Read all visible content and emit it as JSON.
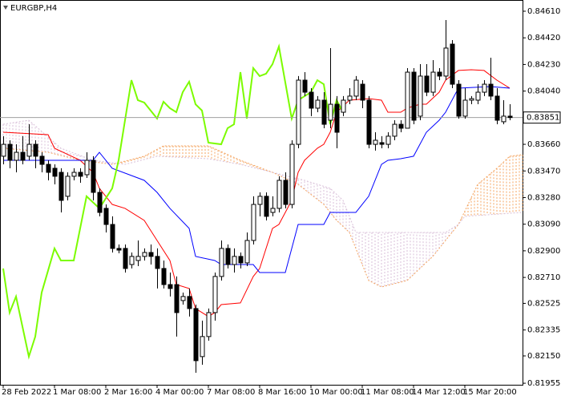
{
  "chart_data": {
    "type": "candlestick",
    "title": "EURGBP,H4",
    "ylim": [
      0.81944,
      0.8469
    ],
    "xlim": [
      -0.5,
      81
    ],
    "yticks": [
      {
        "value": 0.8461,
        "label": "0.84610"
      },
      {
        "value": 0.8442,
        "label": "0.84420"
      },
      {
        "value": 0.8423,
        "label": "0.84230"
      },
      {
        "value": 0.8404,
        "label": "0.84040"
      },
      {
        "value": 0.8366,
        "label": "0.83660"
      },
      {
        "value": 0.8347,
        "label": "0.83470"
      },
      {
        "value": 0.8328,
        "label": "0.83280"
      },
      {
        "value": 0.8309,
        "label": "0.83090"
      },
      {
        "value": 0.829,
        "label": "0.82900"
      },
      {
        "value": 0.8271,
        "label": "0.82710"
      },
      {
        "value": 0.82525,
        "label": "0.82525"
      },
      {
        "value": 0.82335,
        "label": "0.82335"
      },
      {
        "value": 0.8215,
        "label": "0.82150"
      },
      {
        "value": 0.81955,
        "label": "0.81955"
      }
    ],
    "xticks": [
      {
        "value": 0,
        "label": "28 Feb 2022"
      },
      {
        "value": 8,
        "label": "1 Mar 08:00"
      },
      {
        "value": 16,
        "label": "2 Mar 16:00"
      },
      {
        "value": 24,
        "label": "4 Mar 00:00"
      },
      {
        "value": 32,
        "label": "7 Mar 08:00"
      },
      {
        "value": 40,
        "label": "8 Mar 16:00"
      },
      {
        "value": 48,
        "label": "10 Mar 00:00"
      },
      {
        "value": 56,
        "label": "11 Mar 08:00"
      },
      {
        "value": 64,
        "label": "14 Mar 12:00"
      },
      {
        "value": 72,
        "label": "15 Mar 20:00"
      }
    ],
    "current_price": 0.83851,
    "current_price_color": "#a0a0a0",
    "candles": {
      "up_color": "#ffffff",
      "down_color": "#000000",
      "outline_color": "#000000",
      "open": [
        0.83575,
        0.8366,
        0.83546,
        0.83603,
        0.83575,
        0.8366,
        0.83575,
        0.83517,
        0.83489,
        0.8346,
        0.83289,
        0.83432,
        0.8346,
        0.83443,
        0.83546,
        0.83317,
        0.83203,
        0.83088,
        0.82917,
        0.82917,
        0.82802,
        0.82831,
        0.8286,
        0.82888,
        0.8286,
        0.82774,
        0.82659,
        0.82659,
        0.82545,
        0.82574,
        0.82488,
        0.82145,
        0.82288,
        0.82459,
        0.82717,
        0.82917,
        0.82802,
        0.8286,
        0.82814,
        0.82974,
        0.83231,
        0.83289,
        0.83174,
        0.83203,
        0.83403,
        0.83231,
        0.8366,
        0.84118,
        0.84032,
        0.83918,
        0.83975,
        0.83832,
        0.83946,
        0.83889,
        0.83975,
        0.84004,
        0.84089,
        0.83975,
        0.8366,
        0.83672,
        0.8366,
        0.83718,
        0.83803,
        0.83775,
        0.84175,
        0.83861,
        0.84147,
        0.84032,
        0.84175,
        0.84147,
        0.84375,
        0.84089,
        0.83861,
        0.83975,
        0.83975,
        0.84032,
        0.84089,
        0.84004,
        0.83821,
        0.83861
      ],
      "high": [
        0.83718,
        0.83689,
        0.8366,
        0.83718,
        0.83803,
        0.83689,
        0.83603,
        0.83546,
        0.83517,
        0.83489,
        0.8346,
        0.83489,
        0.83489,
        0.83603,
        0.83575,
        0.83346,
        0.83231,
        0.83146,
        0.82945,
        0.82945,
        0.82888,
        0.82974,
        0.82917,
        0.82945,
        0.82917,
        0.82831,
        0.82745,
        0.82717,
        0.82602,
        0.82631,
        0.82516,
        0.82402,
        0.82488,
        0.82745,
        0.82974,
        0.82945,
        0.82917,
        0.82888,
        0.83031,
        0.83289,
        0.83317,
        0.83317,
        0.83289,
        0.83432,
        0.8346,
        0.83689,
        0.84147,
        0.84175,
        0.84061,
        0.84004,
        0.84032,
        0.84347,
        0.84004,
        0.84004,
        0.84061,
        0.84147,
        0.84118,
        0.84004,
        0.83746,
        0.83718,
        0.83746,
        0.83832,
        0.83832,
        0.84204,
        0.84204,
        0.84232,
        0.84232,
        0.84261,
        0.84204,
        0.84547,
        0.84404,
        0.84118,
        0.84061,
        0.84004,
        0.84089,
        0.84118,
        0.84278,
        0.84061,
        0.83975,
        0.83946
      ],
      "low": [
        0.83517,
        0.83489,
        0.8346,
        0.83517,
        0.83546,
        0.83489,
        0.8346,
        0.83403,
        0.83374,
        0.83174,
        0.8326,
        0.83403,
        0.83386,
        0.8342,
        0.8326,
        0.83146,
        0.83031,
        0.82888,
        0.82882,
        0.82745,
        0.82774,
        0.82791,
        0.82831,
        0.82802,
        0.82631,
        0.82631,
        0.82574,
        0.82288,
        0.82516,
        0.82431,
        0.8203,
        0.82087,
        0.82259,
        0.82402,
        0.82688,
        0.82774,
        0.82745,
        0.82774,
        0.82791,
        0.82945,
        0.83146,
        0.83117,
        0.83146,
        0.83174,
        0.83203,
        0.83203,
        0.83632,
        0.84004,
        0.83861,
        0.83889,
        0.83775,
        0.83775,
        0.83632,
        0.83861,
        0.83946,
        0.83975,
        0.83918,
        0.83632,
        0.83615,
        0.83632,
        0.83632,
        0.83689,
        0.83746,
        0.83775,
        0.83803,
        0.83832,
        0.84004,
        0.84004,
        0.84118,
        0.84118,
        0.84061,
        0.83843,
        0.83843,
        0.83946,
        0.83946,
        0.84004,
        0.83975,
        0.83803,
        0.83803,
        0.83832
      ],
      "close": [
        0.8366,
        0.83546,
        0.83603,
        0.83546,
        0.8366,
        0.83575,
        0.83517,
        0.8346,
        0.83432,
        0.8326,
        0.83432,
        0.8346,
        0.83432,
        0.83546,
        0.83317,
        0.83174,
        0.83088,
        0.82917,
        0.82905,
        0.82774,
        0.8286,
        0.8286,
        0.82888,
        0.8286,
        0.82774,
        0.82659,
        0.82631,
        0.82459,
        0.82574,
        0.82488,
        0.82116,
        0.82288,
        0.82459,
        0.82717,
        0.82917,
        0.82802,
        0.8286,
        0.82814,
        0.82974,
        0.83231,
        0.83289,
        0.83146,
        0.83203,
        0.83403,
        0.83231,
        0.8366,
        0.84118,
        0.84032,
        0.83918,
        0.83975,
        0.83803,
        0.83946,
        0.83746,
        0.83975,
        0.84004,
        0.84118,
        0.83975,
        0.8366,
        0.83689,
        0.8366,
        0.83718,
        0.83803,
        0.83775,
        0.84175,
        0.83832,
        0.84147,
        0.84032,
        0.84175,
        0.84147,
        0.84347,
        0.84089,
        0.83861,
        0.83975,
        0.83986,
        0.84032,
        0.84089,
        0.84004,
        0.83832,
        0.83861,
        0.83851
      ]
    },
    "lines": [
      {
        "color": "#ff0000",
        "style": "solid",
        "width": 1,
        "x": [
          0,
          7,
          8,
          12,
          14,
          15,
          17,
          19,
          22,
          24,
          26,
          27,
          29,
          30,
          32,
          33,
          34,
          37,
          39,
          40,
          42,
          43,
          44,
          45,
          46,
          47,
          49,
          50,
          51,
          52,
          54,
          57,
          59,
          60,
          62,
          63,
          65,
          66,
          68,
          69,
          71,
          73,
          75,
          77,
          79
        ],
        "values": [
          0.83746,
          0.83729,
          0.83632,
          0.83546,
          0.8346,
          0.83346,
          0.83231,
          0.83203,
          0.83117,
          0.82974,
          0.82831,
          0.82659,
          0.82631,
          0.82488,
          0.82431,
          0.82459,
          0.82516,
          0.82528,
          0.82717,
          0.82774,
          0.8306,
          0.83088,
          0.83174,
          0.8326,
          0.8346,
          0.83546,
          0.83632,
          0.8366,
          0.83746,
          0.83889,
          0.83975,
          0.83986,
          0.83975,
          0.83889,
          0.83889,
          0.83918,
          0.83946,
          0.83946,
          0.84032,
          0.84118,
          0.84187,
          0.84192,
          0.84187,
          0.84118,
          0.84061
        ]
      },
      {
        "color": "#0000ff",
        "style": "solid",
        "width": 1,
        "x": [
          0,
          14,
          15,
          17,
          22,
          24,
          26,
          29,
          30,
          33,
          34,
          39,
          40,
          44,
          46,
          50,
          51,
          55,
          57,
          59,
          60,
          62,
          64,
          66,
          68,
          69,
          70,
          71,
          76,
          79
        ],
        "values": [
          0.83546,
          0.83546,
          0.83603,
          0.83489,
          0.83403,
          0.83317,
          0.83203,
          0.8306,
          0.8286,
          0.82831,
          0.82802,
          0.82802,
          0.82745,
          0.82745,
          0.83088,
          0.83088,
          0.83174,
          0.83174,
          0.83289,
          0.83517,
          0.83546,
          0.83557,
          0.83575,
          0.83746,
          0.83832,
          0.83889,
          0.83975,
          0.84061,
          0.84072,
          0.84061
        ]
      },
      {
        "color": "#7cfc00",
        "style": "solid",
        "width": 2,
        "x": [
          0,
          1,
          2,
          4,
          5,
          6,
          8,
          9,
          11,
          13,
          15,
          17,
          18,
          20,
          21,
          22,
          24,
          25,
          26,
          27,
          28,
          29,
          30,
          31,
          32,
          34,
          35,
          36,
          37,
          38,
          39,
          40,
          41,
          42,
          43,
          45,
          46,
          48,
          49,
          50,
          51,
          52,
          53
        ],
        "values": [
          0.82774,
          0.82459,
          0.82574,
          0.82145,
          0.82288,
          0.82602,
          0.82917,
          0.82831,
          0.82831,
          0.83289,
          0.83203,
          0.83346,
          0.83546,
          0.84118,
          0.83975,
          0.83958,
          0.83844,
          0.83964,
          0.83918,
          0.83889,
          0.84032,
          0.84107,
          0.83946,
          0.83901,
          0.83672,
          0.8366,
          0.83775,
          0.83803,
          0.84175,
          0.83844,
          0.84204,
          0.84147,
          0.84164,
          0.84232,
          0.84358,
          0.83844,
          0.83975,
          0.84032,
          0.84118,
          0.84089,
          0.83803,
          0.83975,
          0.83889
        ]
      }
    ],
    "cloud": {
      "span_a": {
        "color": "#f4a460",
        "x": [
          0,
          7,
          12,
          17,
          22,
          25,
          32,
          37,
          42,
          46,
          50,
          52,
          54,
          57,
          59,
          63,
          67,
          71,
          74,
          77,
          79,
          81
        ],
        "values": [
          0.83632,
          0.83603,
          0.83546,
          0.83517,
          0.83575,
          0.83649,
          0.83649,
          0.83546,
          0.8346,
          0.83374,
          0.83231,
          0.83117,
          0.83031,
          0.82688,
          0.82642,
          0.82688,
          0.8286,
          0.83088,
          0.83374,
          0.83489,
          0.83575,
          0.83586
        ]
      },
      "span_b": {
        "color": "#d8bfd8",
        "x": [
          0,
          4,
          9,
          14,
          19,
          24,
          32,
          37,
          42,
          47,
          51,
          53,
          55,
          69,
          71,
          72,
          81
        ],
        "values": [
          0.83803,
          0.83832,
          0.83632,
          0.83546,
          0.83517,
          0.83575,
          0.83557,
          0.83517,
          0.8346,
          0.83403,
          0.83346,
          0.8326,
          0.83031,
          0.83031,
          0.83088,
          0.83146,
          0.83174
        ]
      }
    }
  }
}
